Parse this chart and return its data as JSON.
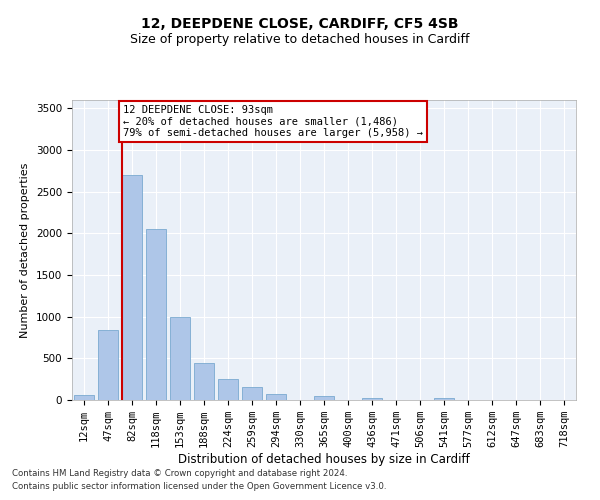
{
  "title1": "12, DEEPDENE CLOSE, CARDIFF, CF5 4SB",
  "title2": "Size of property relative to detached houses in Cardiff",
  "xlabel": "Distribution of detached houses by size in Cardiff",
  "ylabel": "Number of detached properties",
  "categories": [
    "12sqm",
    "47sqm",
    "82sqm",
    "118sqm",
    "153sqm",
    "188sqm",
    "224sqm",
    "259sqm",
    "294sqm",
    "330sqm",
    "365sqm",
    "400sqm",
    "436sqm",
    "471sqm",
    "506sqm",
    "541sqm",
    "577sqm",
    "612sqm",
    "647sqm",
    "683sqm",
    "718sqm"
  ],
  "values": [
    55,
    840,
    2700,
    2050,
    1000,
    450,
    250,
    155,
    70,
    5,
    45,
    5,
    30,
    5,
    0,
    20,
    0,
    0,
    0,
    0,
    0
  ],
  "bar_color": "#aec6e8",
  "bar_edge_color": "#7aaad0",
  "vline_color": "#cc0000",
  "annotation_title": "12 DEEPDENE CLOSE: 93sqm",
  "annotation_line1": "← 20% of detached houses are smaller (1,486)",
  "annotation_line2": "79% of semi-detached houses are larger (5,958) →",
  "annotation_box_color": "#ffffff",
  "annotation_box_edge": "#cc0000",
  "footer1": "Contains HM Land Registry data © Crown copyright and database right 2024.",
  "footer2": "Contains public sector information licensed under the Open Government Licence v3.0.",
  "bg_color": "#eaf0f8",
  "ylim": [
    0,
    3600
  ],
  "title1_fontsize": 10,
  "title2_fontsize": 9,
  "xlabel_fontsize": 8.5,
  "ylabel_fontsize": 8,
  "tick_fontsize": 7.5,
  "footer_fontsize": 6.2,
  "annot_fontsize": 7.5
}
